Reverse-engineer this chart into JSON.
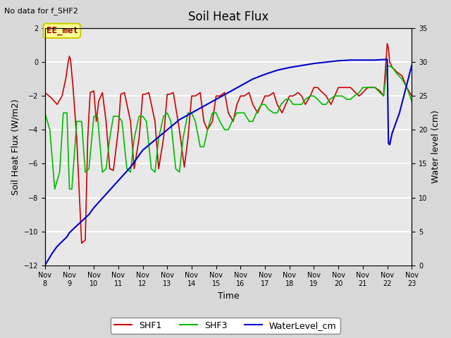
{
  "title": "Soil Heat Flux",
  "subtitle": "No data for f_SHF2",
  "ylabel_left": "Soil Heat Flux (W/m2)",
  "ylabel_right": "Water level (cm)",
  "xlabel": "Time",
  "ylim_left": [
    -12,
    2
  ],
  "ylim_right": [
    0,
    35
  ],
  "yticks_left": [
    -12,
    -10,
    -8,
    -6,
    -4,
    -2,
    0,
    2
  ],
  "yticks_right": [
    0,
    5,
    10,
    15,
    20,
    25,
    30,
    35
  ],
  "legend_labels": [
    "SHF1",
    "SHF3",
    "WaterLevel_cm"
  ],
  "legend_colors": [
    "#cc0000",
    "#00bb00",
    "#0000cc"
  ],
  "ee_met_label": "EE_met",
  "ee_met_bg": "#ffff99",
  "ee_met_border": "#cccc00",
  "ee_met_text": "#990000",
  "background_color": "#d8d8d8",
  "plot_bg": "#e8e8e8",
  "xtick_labels": [
    "Nov 8",
    "Nov 9",
    "Nov 10",
    "Nov 11",
    "Nov 12",
    "Nov 13",
    "Nov 14",
    "Nov 15",
    "Nov 16",
    "Nov 17",
    "Nov 18",
    "Nov 19",
    "Nov 20",
    "Nov 21",
    "Nov 22",
    "Nov 23"
  ],
  "shf1_x": [
    0.0,
    0.25,
    0.5,
    0.7,
    0.85,
    0.95,
    1.0,
    1.05,
    1.15,
    1.3,
    1.5,
    1.65,
    1.75,
    1.85,
    2.0,
    2.1,
    2.2,
    2.35,
    2.5,
    2.65,
    2.8,
    3.0,
    3.1,
    3.25,
    3.5,
    3.65,
    3.85,
    4.0,
    4.1,
    4.25,
    4.5,
    4.65,
    4.85,
    5.0,
    5.1,
    5.25,
    5.5,
    5.7,
    5.85,
    6.0,
    6.15,
    6.35,
    6.5,
    6.65,
    6.85,
    7.0,
    7.15,
    7.35,
    7.5,
    7.7,
    7.85,
    8.0,
    8.15,
    8.35,
    8.5,
    8.7,
    8.85,
    9.0,
    9.15,
    9.35,
    9.5,
    9.7,
    9.85,
    10.0,
    10.15,
    10.35,
    10.5,
    10.65,
    10.85,
    11.0,
    11.15,
    11.35,
    11.5,
    11.7,
    11.85,
    12.0,
    12.15,
    12.35,
    12.5,
    12.7,
    12.85,
    13.0,
    13.2,
    13.5,
    13.7,
    13.85,
    14.0,
    14.05,
    14.1,
    14.2,
    14.4,
    14.6,
    14.8,
    15.0
  ],
  "shf1_y": [
    -1.8,
    -2.1,
    -2.5,
    -2.0,
    -1.0,
    0.0,
    0.35,
    0.1,
    -1.5,
    -4.5,
    -10.7,
    -10.5,
    -4.5,
    -1.8,
    -1.7,
    -3.5,
    -2.3,
    -1.8,
    -3.5,
    -6.3,
    -6.4,
    -4.0,
    -1.9,
    -1.8,
    -3.5,
    -6.3,
    -4.5,
    -1.9,
    -1.9,
    -1.8,
    -3.5,
    -6.3,
    -4.5,
    -1.9,
    -1.9,
    -1.8,
    -4.0,
    -6.2,
    -4.5,
    -2.0,
    -2.0,
    -1.8,
    -3.5,
    -4.0,
    -3.5,
    -2.0,
    -2.0,
    -1.8,
    -3.0,
    -3.5,
    -2.5,
    -2.0,
    -2.0,
    -1.8,
    -2.5,
    -3.0,
    -2.5,
    -2.0,
    -2.0,
    -1.8,
    -2.5,
    -3.0,
    -2.5,
    -2.0,
    -2.0,
    -1.8,
    -2.0,
    -2.5,
    -2.0,
    -1.5,
    -1.5,
    -1.8,
    -2.0,
    -2.5,
    -2.0,
    -1.5,
    -1.5,
    -1.5,
    -1.5,
    -1.8,
    -2.0,
    -1.8,
    -1.5,
    -1.5,
    -1.7,
    -2.0,
    1.1,
    0.8,
    0.0,
    -0.3,
    -0.6,
    -0.8,
    -1.5,
    -2.0
  ],
  "shf3_x": [
    0.0,
    0.2,
    0.4,
    0.6,
    0.75,
    0.9,
    1.0,
    1.1,
    1.3,
    1.5,
    1.65,
    1.8,
    2.0,
    2.15,
    2.35,
    2.5,
    2.65,
    2.8,
    3.0,
    3.15,
    3.35,
    3.5,
    3.65,
    3.85,
    4.0,
    4.15,
    4.35,
    4.5,
    4.65,
    4.85,
    5.0,
    5.15,
    5.35,
    5.5,
    5.65,
    5.85,
    6.0,
    6.15,
    6.35,
    6.5,
    6.65,
    6.85,
    7.0,
    7.15,
    7.35,
    7.5,
    7.65,
    7.85,
    8.0,
    8.15,
    8.35,
    8.5,
    8.65,
    8.85,
    9.0,
    9.15,
    9.35,
    9.5,
    9.65,
    9.85,
    10.0,
    10.15,
    10.35,
    10.5,
    10.65,
    10.85,
    11.0,
    11.15,
    11.35,
    11.5,
    11.65,
    11.85,
    12.0,
    12.15,
    12.35,
    12.5,
    12.65,
    12.85,
    13.0,
    13.2,
    13.5,
    13.7,
    13.85,
    14.0,
    14.2,
    14.4,
    14.6,
    14.8,
    15.0
  ],
  "shf3_y": [
    -3.0,
    -4.0,
    -7.5,
    -6.5,
    -3.0,
    -3.0,
    -7.5,
    -7.5,
    -3.5,
    -3.5,
    -6.5,
    -6.3,
    -3.2,
    -3.2,
    -6.5,
    -6.3,
    -4.5,
    -3.2,
    -3.2,
    -3.5,
    -6.3,
    -6.5,
    -4.5,
    -3.2,
    -3.2,
    -3.5,
    -6.3,
    -6.5,
    -4.5,
    -3.2,
    -3.0,
    -3.5,
    -6.3,
    -6.5,
    -4.5,
    -3.0,
    -3.0,
    -3.5,
    -5.0,
    -5.0,
    -4.0,
    -3.0,
    -3.0,
    -3.5,
    -4.0,
    -4.0,
    -3.5,
    -3.0,
    -3.0,
    -3.0,
    -3.5,
    -3.5,
    -3.0,
    -2.5,
    -2.5,
    -2.8,
    -3.0,
    -3.0,
    -2.5,
    -2.2,
    -2.2,
    -2.5,
    -2.5,
    -2.5,
    -2.2,
    -2.0,
    -2.0,
    -2.2,
    -2.5,
    -2.5,
    -2.2,
    -2.0,
    -2.0,
    -2.0,
    -2.2,
    -2.2,
    -2.0,
    -1.8,
    -1.5,
    -1.5,
    -1.5,
    -1.8,
    -2.0,
    -0.2,
    -0.3,
    -0.7,
    -1.0,
    -1.5,
    -2.3
  ],
  "water_x": [
    0.0,
    0.05,
    0.1,
    0.2,
    0.3,
    0.5,
    0.7,
    0.9,
    1.0,
    1.2,
    1.5,
    1.8,
    2.0,
    2.5,
    3.0,
    3.5,
    4.0,
    4.5,
    5.0,
    5.5,
    6.0,
    6.5,
    7.0,
    7.5,
    8.0,
    8.5,
    9.0,
    9.5,
    10.0,
    10.5,
    11.0,
    11.5,
    12.0,
    12.5,
    13.0,
    13.5,
    14.0,
    14.05,
    14.1,
    14.2,
    14.5,
    15.0
  ],
  "water_y": [
    0.0,
    0.3,
    0.6,
    1.2,
    1.8,
    2.8,
    3.5,
    4.2,
    4.8,
    5.5,
    6.5,
    7.5,
    8.5,
    10.5,
    12.5,
    14.5,
    17.0,
    18.5,
    20.0,
    21.5,
    22.5,
    23.5,
    24.5,
    25.5,
    26.5,
    27.5,
    28.2,
    28.8,
    29.2,
    29.5,
    29.8,
    30.0,
    30.2,
    30.3,
    30.3,
    30.3,
    30.4,
    18.0,
    17.8,
    19.5,
    22.5,
    29.5
  ]
}
